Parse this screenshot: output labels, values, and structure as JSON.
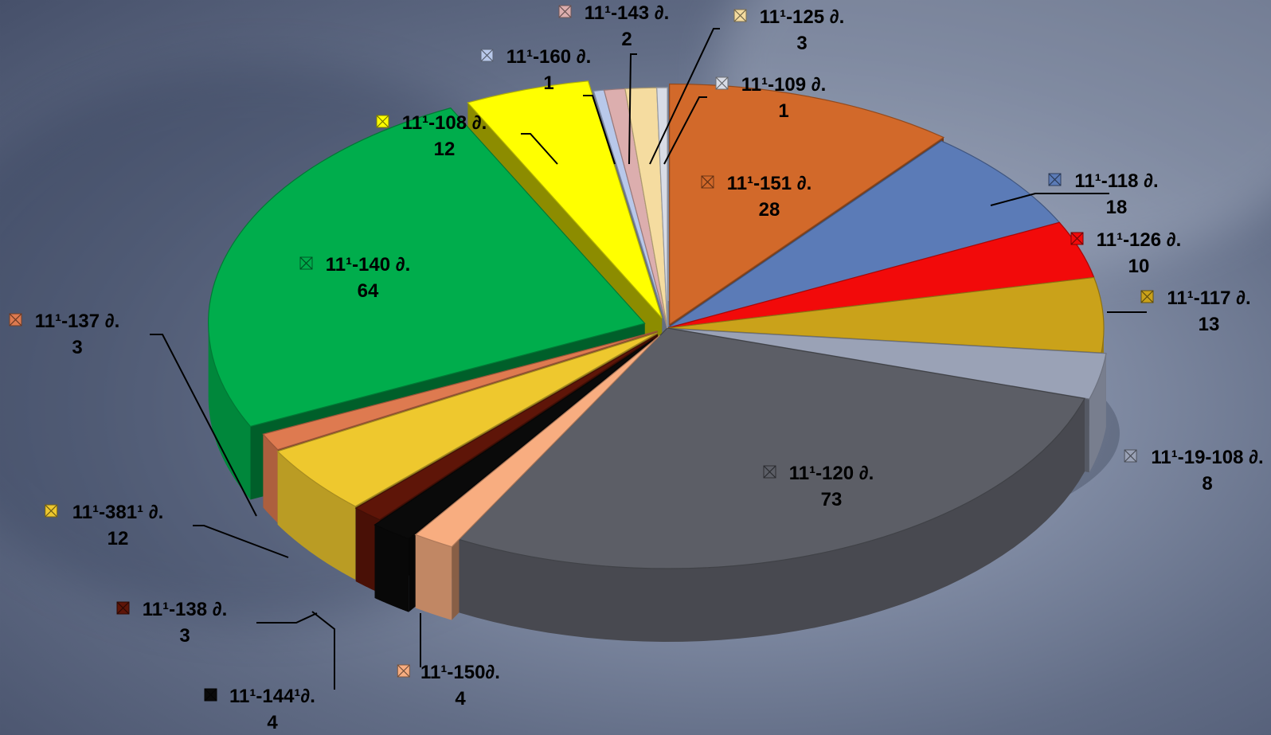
{
  "chart_data": {
    "type": "pie",
    "title": "",
    "legend": "none",
    "slices": [
      {
        "name": "11¹-151 ∂.",
        "value": 28,
        "color": "#d2692a"
      },
      {
        "name": "11¹-118 ∂.",
        "value": 18,
        "color": "#5b7bb7"
      },
      {
        "name": "11¹-126 ∂.",
        "value": 10,
        "color": "#f20a0a"
      },
      {
        "name": "11¹-117 ∂.",
        "value": 13,
        "color": "#caa21a"
      },
      {
        "name": "11¹-19-108 ∂.",
        "value": 8,
        "color": "#9aa2b6"
      },
      {
        "name": "11¹-120 ∂.",
        "value": 73,
        "color": "#5c5e66"
      },
      {
        "name": "11¹-150∂.",
        "value": 4,
        "color": "#f8ad80"
      },
      {
        "name": "11¹-144¹∂.",
        "value": 4,
        "color": "#0a0a0a"
      },
      {
        "name": "11¹-138 ∂.",
        "value": 3,
        "color": "#5e1508"
      },
      {
        "name": "11¹-381¹ ∂.",
        "value": 12,
        "color": "#eec82e"
      },
      {
        "name": "11¹-137 ∂.",
        "value": 3,
        "color": "#de7a50"
      },
      {
        "name": "11¹-140 ∂.",
        "value": 64,
        "color": "#00ad4c"
      },
      {
        "name": "11¹-108 ∂.",
        "value": 12,
        "color": "#ffff00"
      },
      {
        "name": "11¹-160 ∂.",
        "value": 1,
        "color": "#b8c8ea"
      },
      {
        "name": "11¹-143 ∂.",
        "value": 2,
        "color": "#dcaeae"
      },
      {
        "name": "11¹-125 ∂.",
        "value": 3,
        "color": "#f5dca0"
      },
      {
        "name": "11¹-109 ∂.",
        "value": 1,
        "color": "#d8dce6"
      }
    ]
  }
}
